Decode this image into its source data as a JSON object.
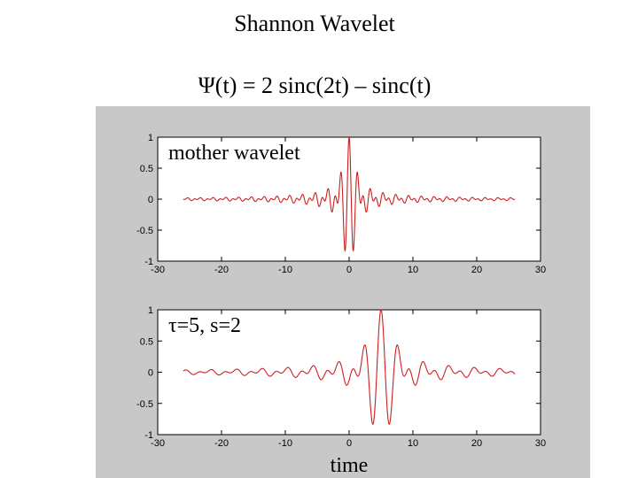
{
  "title": "Shannon Wavelet",
  "formula": "Ψ(t) = 2 sinc(2t) – sinc(t)",
  "colors": {
    "curve": "#cc1f1f",
    "panel_background": "#c8c8c8",
    "axes_background": "#ffffff"
  },
  "chart_data": [
    {
      "type": "line",
      "annotation": "mother wavelet",
      "function": "2 sinc(2t) - sinc(t)",
      "tau": 0,
      "scale": 1,
      "x_range": [
        -26,
        26
      ],
      "xlim": [
        -30,
        30
      ],
      "ylim": [
        -1,
        1
      ],
      "xticks": [
        -30,
        -20,
        -10,
        0,
        10,
        20,
        30
      ],
      "yticks": [
        1,
        0.5,
        0,
        -0.5,
        -1
      ],
      "xtick_labels": [
        "-30",
        "-20",
        "-10",
        "0",
        "10",
        "20",
        "30"
      ],
      "ytick_labels": [
        "1",
        "0.5",
        "0",
        "-0.5",
        "-1"
      ],
      "xlabel": ""
    },
    {
      "type": "line",
      "annotation": "τ=5, s=2",
      "function": "2 sinc(2t) - sinc(t)",
      "tau": 5,
      "scale": 2,
      "x_range": [
        -26,
        26
      ],
      "xlim": [
        -30,
        30
      ],
      "ylim": [
        -1,
        1
      ],
      "xticks": [
        -30,
        -20,
        -10,
        0,
        10,
        20,
        30
      ],
      "yticks": [
        1,
        0.5,
        0,
        -0.5,
        -1
      ],
      "xtick_labels": [
        "-30",
        "-20",
        "-10",
        "0",
        "10",
        "20",
        "30"
      ],
      "ytick_labels": [
        "1",
        "0.5",
        "0",
        "-0.5",
        "-1"
      ],
      "xlabel": "time"
    }
  ]
}
